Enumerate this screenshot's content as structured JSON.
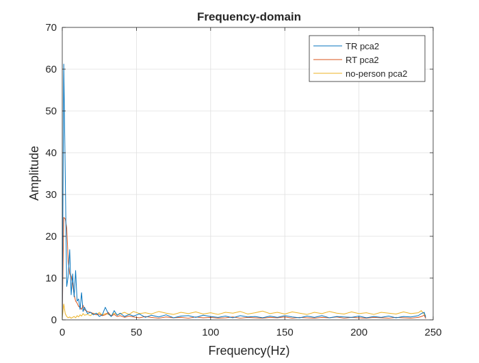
{
  "chart_data": {
    "type": "line",
    "title": "Frequency-domain",
    "xlabel": "Frequency(Hz)",
    "ylabel": "Amplitude",
    "xlim": [
      0,
      250
    ],
    "ylim": [
      0,
      70
    ],
    "xticks": [
      0,
      50,
      100,
      150,
      200,
      250
    ],
    "yticks": [
      0,
      10,
      20,
      30,
      40,
      50,
      60,
      70
    ],
    "grid": true,
    "legend_position": "top-right",
    "series": [
      {
        "name": "TR pca2",
        "color": "#0072BD",
        "x": [
          0,
          1,
          2,
          3,
          4,
          5,
          6,
          7,
          8,
          9,
          10,
          11,
          12,
          13,
          14,
          15,
          17,
          19,
          21,
          23,
          25,
          27,
          29,
          31,
          33,
          35,
          37,
          39,
          42,
          45,
          48,
          52,
          56,
          60,
          65,
          70,
          75,
          80,
          85,
          90,
          95,
          100,
          105,
          110,
          115,
          120,
          125,
          130,
          135,
          140,
          145,
          150,
          155,
          160,
          165,
          170,
          175,
          180,
          185,
          190,
          195,
          200,
          205,
          210,
          215,
          220,
          225,
          230,
          235,
          240,
          242,
          244,
          245
        ],
        "y": [
          0.8,
          61.2,
          35,
          8,
          10.5,
          16.8,
          6,
          11,
          5.5,
          11.8,
          4.5,
          5,
          2.5,
          6.5,
          2,
          3,
          1.5,
          1.8,
          1.2,
          1.6,
          0.8,
          1.2,
          3.0,
          1.5,
          0.8,
          2.2,
          1.1,
          1.6,
          0.8,
          1.3,
          0.9,
          1.4,
          0.6,
          1.1,
          0.7,
          1.2,
          0.5,
          0.9,
          1.0,
          0.6,
          1.1,
          0.8,
          0.6,
          0.9,
          0.5,
          1.0,
          0.7,
          0.8,
          0.5,
          0.9,
          0.6,
          1.0,
          0.7,
          0.5,
          0.9,
          0.6,
          1.0,
          0.5,
          0.8,
          0.7,
          0.6,
          0.9,
          0.5,
          0.8,
          0.6,
          0.9,
          0.5,
          0.8,
          0.7,
          1.0,
          1.5,
          1.8,
          0.6
        ]
      },
      {
        "name": "RT pca2",
        "color": "#D95319",
        "x": [
          0,
          1,
          2,
          3,
          4,
          5,
          6,
          7,
          8,
          9,
          10,
          11,
          12,
          13,
          14,
          15,
          17,
          19,
          21,
          23,
          25,
          27,
          29,
          31,
          33,
          35,
          37,
          39,
          42,
          45,
          48,
          52,
          56,
          60,
          65,
          70,
          75,
          80,
          85,
          90,
          95,
          100,
          105,
          110,
          115,
          120,
          125,
          130,
          135,
          140,
          145,
          150,
          155,
          160,
          165,
          170,
          175,
          180,
          185,
          190,
          195,
          200,
          205,
          210,
          215,
          220,
          225,
          230,
          235,
          240,
          242,
          244,
          245
        ],
        "y": [
          0.5,
          24.5,
          24.2,
          22,
          14,
          11,
          10.5,
          8.5,
          6,
          4.5,
          4,
          3.2,
          3,
          2.5,
          3.5,
          2.4,
          2,
          1.8,
          1.5,
          1.2,
          1.4,
          1.0,
          1.2,
          1.8,
          0.9,
          1.3,
          0.8,
          1.0,
          0.6,
          0.9,
          0.7,
          0.5,
          0.8,
          0.6,
          0.4,
          0.7,
          0.5,
          0.6,
          0.4,
          0.7,
          0.5,
          0.6,
          0.4,
          0.5,
          0.7,
          0.4,
          0.6,
          0.5,
          0.4,
          0.6,
          0.5,
          0.7,
          0.4,
          0.6,
          0.5,
          0.4,
          0.6,
          0.5,
          0.7,
          0.4,
          0.6,
          0.5,
          0.4,
          0.6,
          0.5,
          0.4,
          0.6,
          0.5,
          0.4,
          0.6,
          0.8,
          1.1,
          0.3
        ]
      },
      {
        "name": "no-person pca2",
        "color": "#EDB120",
        "x": [
          0,
          1,
          2,
          3,
          4,
          5,
          6,
          7,
          8,
          9,
          10,
          11,
          12,
          13,
          14,
          15,
          17,
          19,
          21,
          23,
          25,
          27,
          29,
          31,
          33,
          35,
          37,
          39,
          42,
          45,
          48,
          52,
          56,
          60,
          65,
          70,
          75,
          80,
          85,
          90,
          95,
          100,
          105,
          110,
          115,
          120,
          125,
          130,
          135,
          140,
          145,
          150,
          155,
          160,
          165,
          170,
          175,
          180,
          185,
          190,
          195,
          200,
          205,
          210,
          215,
          220,
          225,
          230,
          235,
          240,
          242,
          244,
          245
        ],
        "y": [
          0.5,
          3.8,
          1.5,
          0.8,
          0.5,
          0.7,
          0.4,
          0.6,
          0.8,
          0.5,
          1.0,
          0.7,
          1.2,
          0.9,
          1.5,
          1.1,
          1.3,
          1.0,
          1.6,
          1.2,
          1.8,
          1.1,
          1.5,
          1.3,
          1.0,
          1.6,
          1.2,
          1.4,
          1.8,
          1.3,
          2.0,
          1.5,
          1.7,
          1.4,
          2.0,
          1.6,
          1.3,
          1.8,
          1.5,
          1.9,
          1.4,
          1.7,
          1.3,
          1.8,
          1.6,
          2.0,
          1.4,
          1.7,
          2.1,
          1.5,
          1.8,
          1.4,
          1.9,
          1.6,
          1.3,
          1.8,
          1.5,
          2.0,
          1.6,
          1.4,
          1.9,
          1.5,
          1.7,
          1.3,
          1.8,
          1.6,
          1.4,
          1.9,
          1.5,
          1.7,
          2.2,
          1.3,
          1.0
        ]
      }
    ]
  }
}
